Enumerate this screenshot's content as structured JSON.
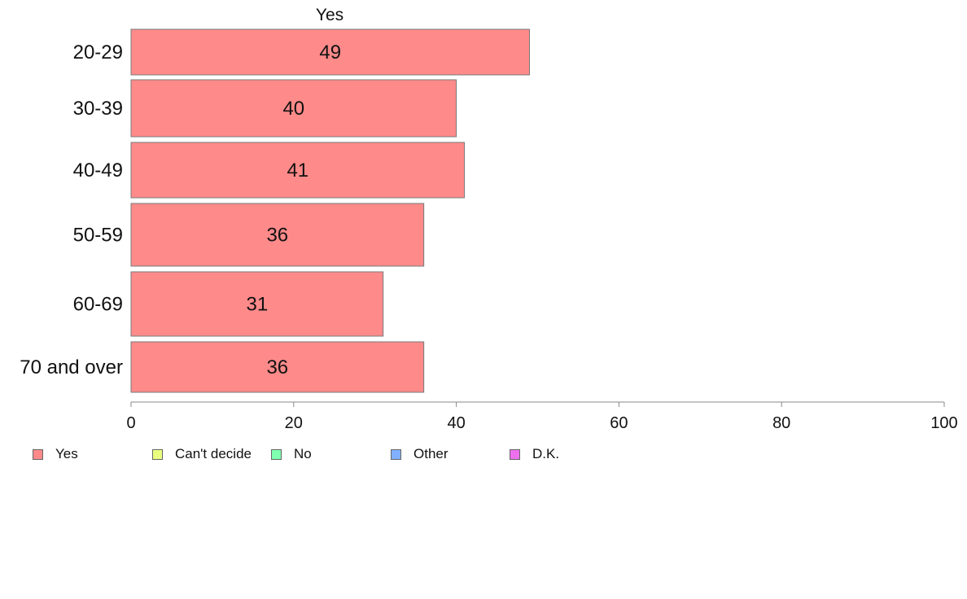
{
  "chart_data": {
    "type": "bar",
    "orientation": "horizontal",
    "series_title": "Yes",
    "categories": [
      "20-29",
      "30-39",
      "40-49",
      "50-59",
      "60-69",
      "70 and over"
    ],
    "series": [
      {
        "name": "Yes",
        "values": [
          49,
          40,
          41,
          36,
          31,
          36
        ],
        "color": "#ff8a8a"
      }
    ],
    "xlim": [
      0,
      100
    ],
    "xticks": [
      0,
      20,
      40,
      60,
      80,
      100
    ],
    "grid": false,
    "legend_position": "bottom-left"
  },
  "legend": [
    {
      "label": "Yes",
      "color": "#ff8a8a"
    },
    {
      "label": "Can't decide",
      "color": "#e8ff80"
    },
    {
      "label": "No",
      "color": "#80ffb0"
    },
    {
      "label": "Other",
      "color": "#80b0ff"
    },
    {
      "label": "D.K.",
      "color": "#ee70ee"
    }
  ]
}
